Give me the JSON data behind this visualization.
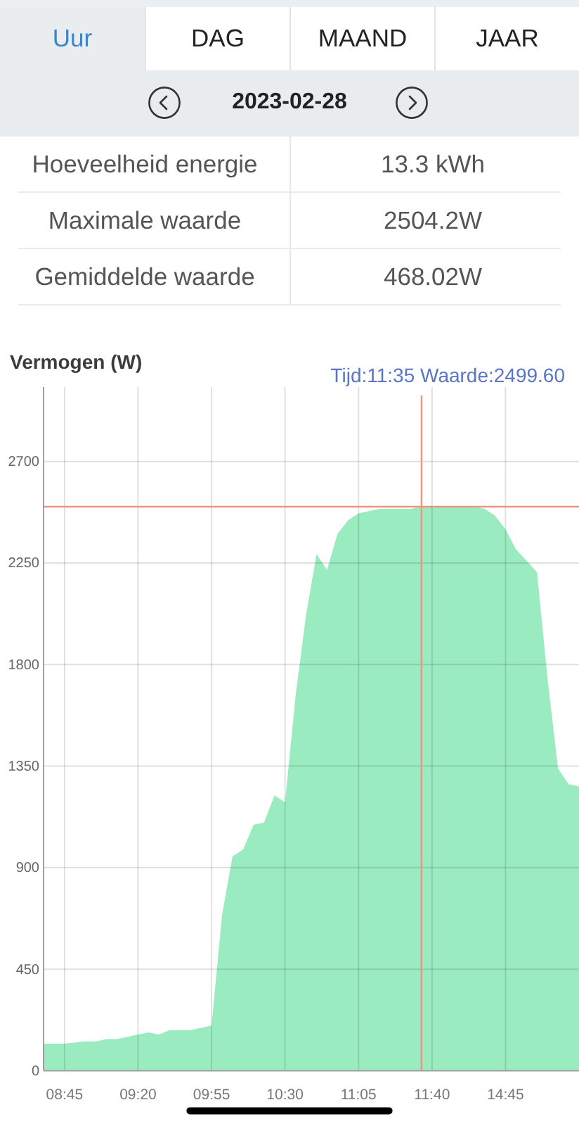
{
  "chart_data": [
    {
      "type": "other",
      "annotations": [
        "Uur",
        "DAG",
        "MAAND",
        "JAAR",
        "2023-02-28",
        "Hoeveelheid energie",
        "13.3 kWh",
        "Maximale waarde",
        "2504.2W",
        "Gemiddelde waarde",
        "468.02W"
      ]
    },
    {
      "type": "area",
      "ylabel": "Vermogen (W)",
      "annotations": [
        "Tijd:11:35 Waarde:2499.60"
      ],
      "categories": [
        null,
        null,
        "08:45",
        null,
        null,
        null,
        null,
        null,
        null,
        "09:20",
        null,
        null,
        null,
        null,
        null,
        null,
        "09:55",
        null,
        null,
        null,
        null,
        null,
        null,
        "10:30",
        null,
        null,
        null,
        null,
        null,
        null,
        "11:05",
        null,
        null,
        null,
        null,
        null,
        null,
        "11:40",
        null,
        null,
        null,
        null,
        null,
        null,
        "14:45",
        null,
        null,
        null,
        null,
        null,
        null,
        null
      ],
      "values": [
        120,
        120,
        120,
        125,
        130,
        130,
        140,
        140,
        150,
        160,
        170,
        160,
        180,
        180,
        180,
        190,
        200,
        690,
        950,
        980,
        1090,
        1100,
        1220,
        1190,
        1660,
        2020,
        2290,
        2220,
        2380,
        2440,
        2470,
        2480,
        2490,
        2490,
        2490,
        2490,
        2500,
        2500,
        2500,
        2500,
        2500,
        2500,
        2490,
        2460,
        2400,
        2310,
        2260,
        2210,
        1740,
        1340,
        1270,
        1260
      ],
      "color": "#9aecc0",
      "ylim": [
        0,
        3030
      ],
      "yticks": [
        0,
        450,
        900,
        1350,
        1800,
        2250,
        2700
      ],
      "grid": true,
      "ref_lines": [
        {
          "axis": "y",
          "value": 2499.6,
          "color": "#ec9580"
        }
      ]
    }
  ]
}
